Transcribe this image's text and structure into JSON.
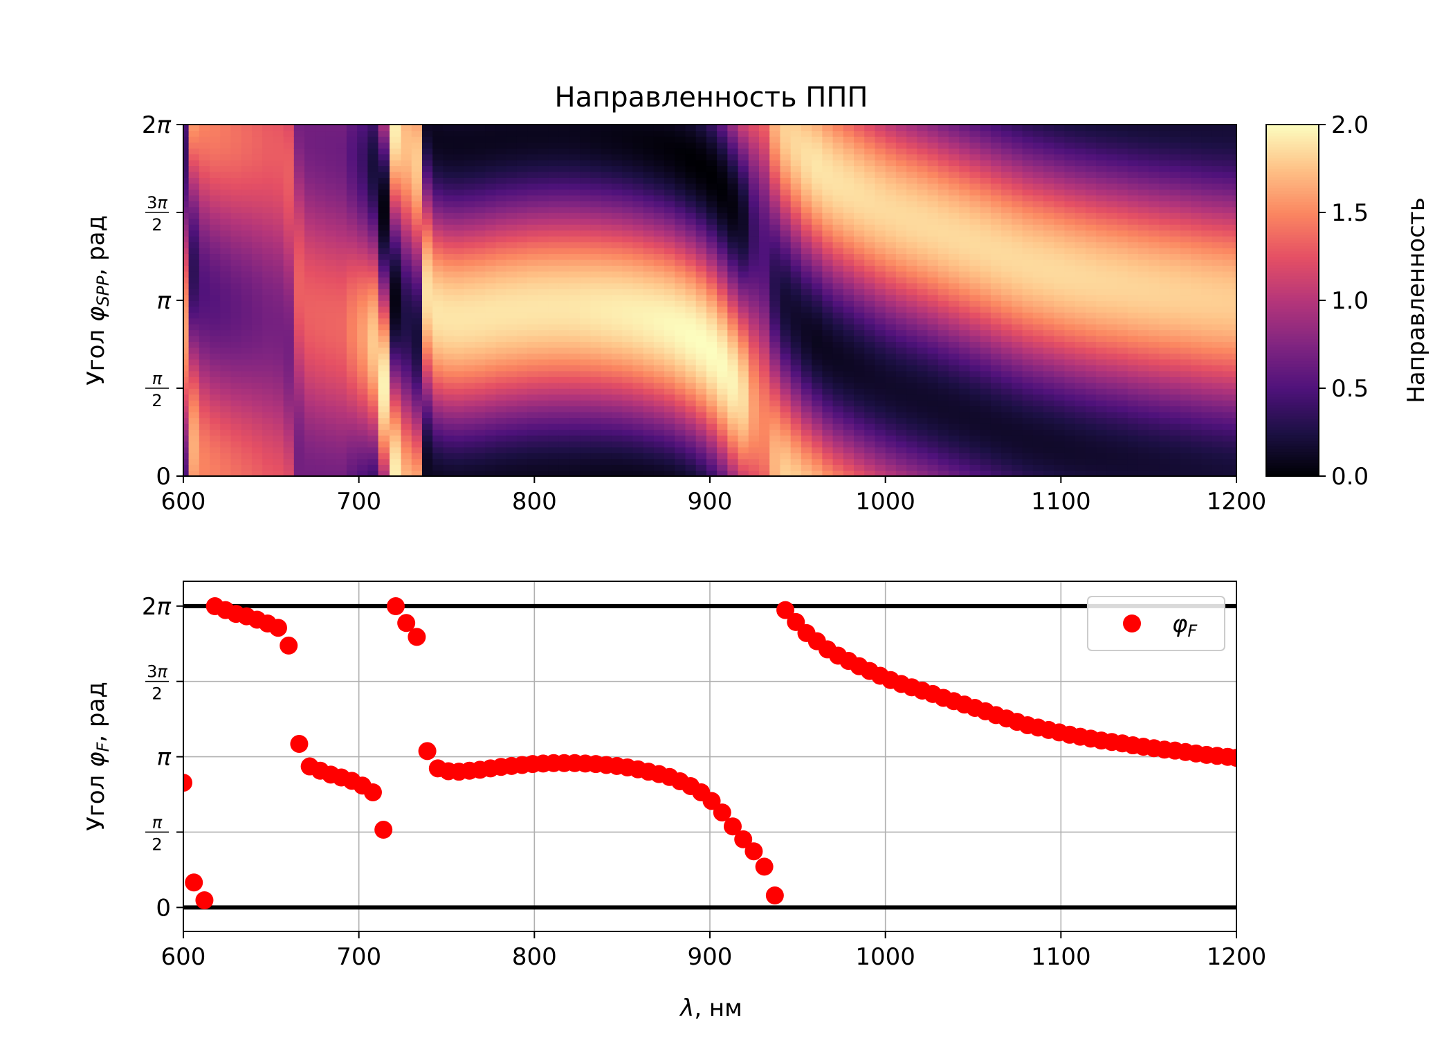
{
  "chart_data": [
    {
      "type": "heatmap",
      "title": "Направленность ППП",
      "xlabel": "",
      "ylabel_parts": [
        "Угол ",
        "φ",
        "SPP",
        ", рад"
      ],
      "xlim": [
        600,
        1200
      ],
      "ylim": [
        0,
        6.2832
      ],
      "x_ticks": [
        600,
        700,
        800,
        900,
        1000,
        1100,
        1200
      ],
      "x_tick_labels": [
        "600",
        "700",
        "800",
        "900",
        "1000",
        "1100",
        "1200"
      ],
      "y_ticks": [
        {
          "value": 0,
          "label": "0"
        },
        {
          "value": 1.5708,
          "num": "π",
          "den": "2"
        },
        {
          "value": 3.1416,
          "label": "π"
        },
        {
          "value": 4.7124,
          "num": "3π",
          "den": "2"
        },
        {
          "value": 6.2832,
          "label": "2π"
        }
      ],
      "colormap": "magma",
      "color_range": [
        0.0,
        2.0
      ],
      "colorbar": {
        "label": "Направленность",
        "ticks": [
          0.0,
          0.5,
          1.0,
          1.5,
          2.0
        ],
        "tick_labels": [
          "0.0",
          "0.5",
          "1.0",
          "1.5",
          "2.0"
        ]
      },
      "grid": false,
      "data_model": "D(λ, φ) = 1 + A(λ)·cos(φ − φF(λ)), clipped to [0, 2]; amplitude A(λ) per wavelength sample",
      "amplitude": {
        "x": [
          600,
          603,
          608,
          620,
          650,
          690,
          705,
          712,
          716,
          718,
          722,
          728,
          740,
          780,
          820,
          860,
          890,
          905,
          915,
          922,
          928,
          940,
          960,
          1000,
          1100,
          1200
        ],
        "A": [
          0.6,
          0.9,
          0.5,
          0.45,
          0.3,
          0.35,
          0.65,
          0.95,
          0.95,
          0.9,
          0.95,
          0.7,
          0.9,
          0.9,
          0.9,
          0.95,
          1.0,
          1.0,
          0.95,
          0.8,
          0.4,
          0.8,
          0.9,
          0.85,
          0.85,
          0.8
        ]
      }
    },
    {
      "type": "scatter",
      "title": "",
      "xlabel_parts": [
        "λ",
        ", нм"
      ],
      "ylabel_parts": [
        "Угол ",
        "φ",
        "F",
        ", рад"
      ],
      "xlim": [
        600,
        1200
      ],
      "ylim": [
        -0.5,
        6.8
      ],
      "x_ticks": [
        600,
        700,
        800,
        900,
        1000,
        1100,
        1200
      ],
      "x_tick_labels": [
        "600",
        "700",
        "800",
        "900",
        "1000",
        "1100",
        "1200"
      ],
      "y_ticks": [
        {
          "value": 0,
          "label": "0"
        },
        {
          "value": 1.5708,
          "num": "π",
          "den": "2"
        },
        {
          "value": 3.1416,
          "label": "π"
        },
        {
          "value": 4.7124,
          "num": "3π",
          "den": "2"
        },
        {
          "value": 6.2832,
          "label": "2π"
        }
      ],
      "grid": true,
      "hlines": [
        0,
        6.2832
      ],
      "legend": {
        "position": "top-right",
        "entries": [
          {
            "symbol": "φ",
            "sub": "F",
            "color": "#ff0000"
          }
        ]
      },
      "series": [
        {
          "color": "#ff0000",
          "x": [
            600,
            606,
            612,
            618,
            624,
            630,
            636,
            642,
            648,
            654,
            660,
            666,
            672,
            678,
            684,
            690,
            696,
            702,
            708,
            714,
            721,
            727,
            733,
            739,
            745,
            751,
            757,
            763,
            769,
            775,
            781,
            787,
            793,
            799,
            805,
            811,
            817,
            823,
            829,
            835,
            841,
            847,
            853,
            859,
            865,
            871,
            877,
            883,
            889,
            895,
            901,
            907,
            913,
            919,
            925,
            931,
            937,
            943,
            949,
            955,
            961,
            967,
            973,
            979,
            985,
            991,
            997,
            1003,
            1009,
            1015,
            1021,
            1027,
            1033,
            1039,
            1045,
            1051,
            1057,
            1063,
            1069,
            1075,
            1081,
            1087,
            1093,
            1099,
            1105,
            1111,
            1117,
            1123,
            1129,
            1135,
            1141,
            1147,
            1153,
            1159,
            1165,
            1171,
            1177,
            1183,
            1189,
            1195,
            1200
          ],
          "y": [
            2.6,
            0.52,
            0.15,
            6.28,
            6.2,
            6.12,
            6.07,
            6.0,
            5.92,
            5.83,
            5.46,
            3.41,
            2.94,
            2.85,
            2.77,
            2.71,
            2.64,
            2.54,
            2.4,
            1.62,
            6.28,
            5.93,
            5.64,
            3.26,
            2.9,
            2.84,
            2.83,
            2.85,
            2.87,
            2.9,
            2.93,
            2.95,
            2.97,
            2.99,
            3.0,
            3.01,
            3.01,
            3.01,
            3.0,
            2.99,
            2.97,
            2.95,
            2.92,
            2.88,
            2.83,
            2.78,
            2.72,
            2.63,
            2.53,
            2.4,
            2.22,
            1.98,
            1.69,
            1.42,
            1.17,
            0.85,
            0.25,
            6.2,
            5.95,
            5.72,
            5.55,
            5.38,
            5.25,
            5.14,
            5.03,
            4.93,
            4.83,
            4.74,
            4.66,
            4.59,
            4.52,
            4.45,
            4.37,
            4.3,
            4.23,
            4.16,
            4.09,
            4.01,
            3.94,
            3.87,
            3.8,
            3.75,
            3.7,
            3.65,
            3.6,
            3.56,
            3.52,
            3.48,
            3.45,
            3.42,
            3.38,
            3.35,
            3.32,
            3.29,
            3.27,
            3.24,
            3.21,
            3.18,
            3.16,
            3.14,
            3.12
          ]
        }
      ]
    }
  ]
}
